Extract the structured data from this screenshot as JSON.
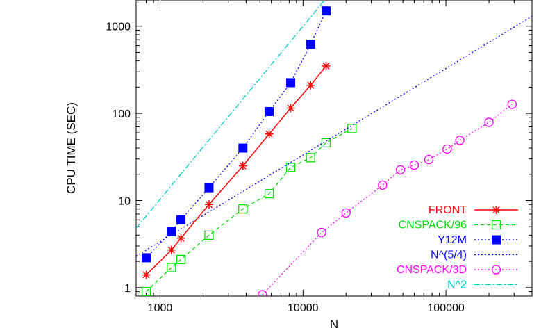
{
  "chart_data": {
    "type": "line",
    "title": "",
    "xlabel": "N",
    "ylabel": "CPU TIME (SEC)",
    "xscale": "log",
    "yscale": "log",
    "xlim": [
      680,
      400000
    ],
    "ylim": [
      0.8,
      2000
    ],
    "x_ticks": [
      1000,
      10000,
      100000
    ],
    "x_tick_labels": [
      "1000",
      "10000",
      "100000"
    ],
    "y_ticks": [
      1,
      10,
      100,
      1000
    ],
    "y_tick_labels": [
      "1",
      "10",
      "100",
      "1000"
    ],
    "grid": false,
    "legend_position": "bottom-right",
    "series": [
      {
        "name": "FRONT",
        "color": "#ff0000",
        "line": "solid",
        "marker": "star",
        "x": [
          800,
          1200,
          1400,
          2200,
          3800,
          5800,
          8200,
          11300,
          14500
        ],
        "y": [
          1.4,
          2.7,
          3.7,
          9,
          25,
          58,
          115,
          210,
          350
        ]
      },
      {
        "name": "CNSPACK/96",
        "color": "#00dd00",
        "line": "dashed",
        "marker": "open-square",
        "x": [
          800,
          1200,
          1400,
          2200,
          3800,
          5800,
          8200,
          11300,
          14500,
          22000
        ],
        "y": [
          0.9,
          1.7,
          2.1,
          4,
          8,
          12,
          24,
          31,
          46,
          67
        ]
      },
      {
        "name": "Y12M",
        "color": "#0000ff",
        "line": "dotted",
        "marker": "filled-square",
        "x": [
          800,
          1200,
          1400,
          2200,
          3800,
          5800,
          8200,
          11300,
          14500
        ],
        "y": [
          2.2,
          4.4,
          6,
          14,
          40,
          105,
          225,
          620,
          1500
        ]
      },
      {
        "name": "N^(5/4)",
        "color": "#0000ff",
        "line": "dotted",
        "marker": "none",
        "x": [
          680,
          400000
        ],
        "y": [
          2.3,
          1300
        ]
      },
      {
        "name": "CNSPACK/3D",
        "color": "#ff00ff",
        "line": "dotted",
        "marker": "open-circle",
        "x": [
          5200,
          13500,
          20000,
          36000,
          48000,
          60000,
          76000,
          102000,
          125000,
          200000,
          290000
        ],
        "y": [
          0.83,
          4.3,
          7.2,
          15,
          22.5,
          25.5,
          29.5,
          39,
          49,
          79,
          127
        ]
      },
      {
        "name": "N^2",
        "color": "#00cccc",
        "line": "dashdot",
        "marker": "none",
        "x": [
          680,
          14200
        ],
        "y": [
          4.8,
          2000
        ]
      }
    ]
  }
}
